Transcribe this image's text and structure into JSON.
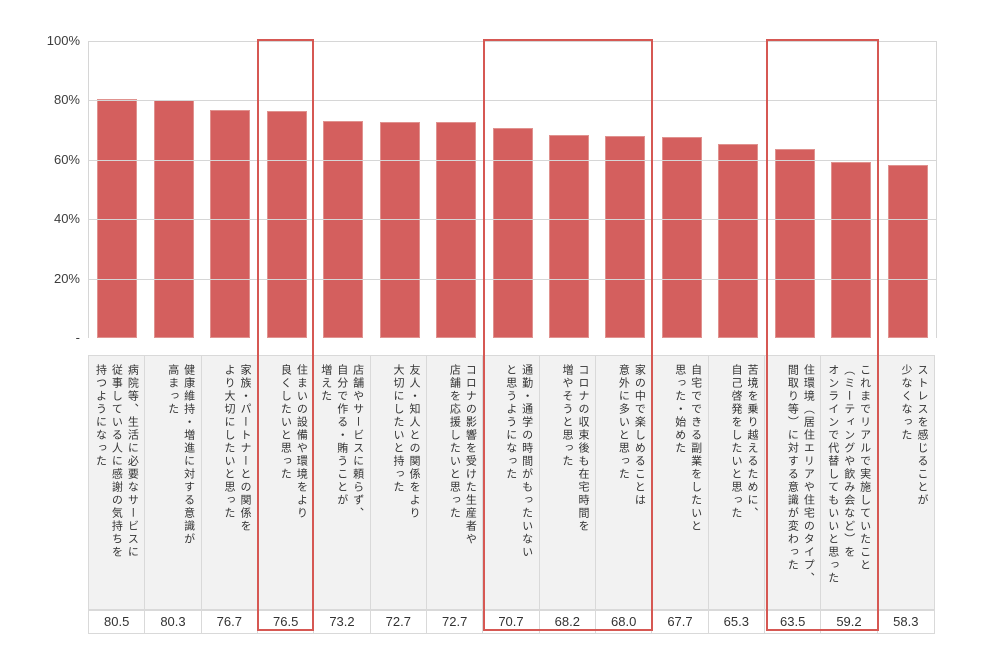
{
  "chart_data": {
    "type": "bar",
    "title": "",
    "xlabel": "",
    "ylabel": "",
    "ylim": [
      0,
      100
    ],
    "grid": true,
    "legend": "none",
    "bar_color": "#d45f5e",
    "bar_border_color": "#e0928f",
    "highlight_color": "#d65853",
    "y_ticks": [
      {
        "label": "100%",
        "value": 100
      },
      {
        "label": "80%",
        "value": 80
      },
      {
        "label": "60%",
        "value": 60
      },
      {
        "label": "40%",
        "value": 40
      },
      {
        "label": "20%",
        "value": 20
      },
      {
        "label": "-",
        "value": 0
      }
    ],
    "categories": [
      "病院等、生活に必要なサービスに\n従事している人に感謝の気持ちを\n持つようになった",
      "健康維持・増進に対する意識が\n高まった",
      "家族・パートナーとの関係を\nより大切にしたいと思った",
      "住まいの設備や環境をより\n良くしたいと思った",
      "店舗やサービスに頼らず、\n自分で作る・賄うことが\n増えた",
      "友人・知人との関係をより\n大切にしたいと持った",
      "コロナの影響を受けた生産者や\n店舗を応援したいと思った",
      "通勤・通学の時間がもったいない\nと思うようになった",
      "コロナの収束後も在宅時間を\n増やそうと思った",
      "家の中で楽しめることは\n意外に多いと思った",
      "自宅でできる副業をしたいと\n思った・始めた",
      "苦境を乗り越えるために、\n自己啓発をしたいと思った",
      "住環境（居住エリアや住宅のタイプ、\n間取り等）に対する意識が変わった",
      "これまでリアルで実施していたこと\n（ミーティングや飲み会など）を\nオンラインで代替してもいいと思った",
      "ストレスを感じることが\n少なくなった"
    ],
    "values": [
      80.5,
      80.3,
      76.7,
      76.5,
      73.2,
      72.7,
      72.7,
      70.7,
      68.2,
      68.0,
      67.7,
      65.3,
      63.5,
      59.2,
      58.3
    ],
    "value_labels": [
      "80.5",
      "80.3",
      "76.7",
      "76.5",
      "73.2",
      "72.7",
      "72.7",
      "70.7",
      "68.2",
      "68.0",
      "67.7",
      "65.3",
      "63.5",
      "59.2",
      "58.3"
    ],
    "highlight_groups": [
      [
        3
      ],
      [
        7,
        8,
        9
      ],
      [
        12,
        13
      ]
    ]
  }
}
